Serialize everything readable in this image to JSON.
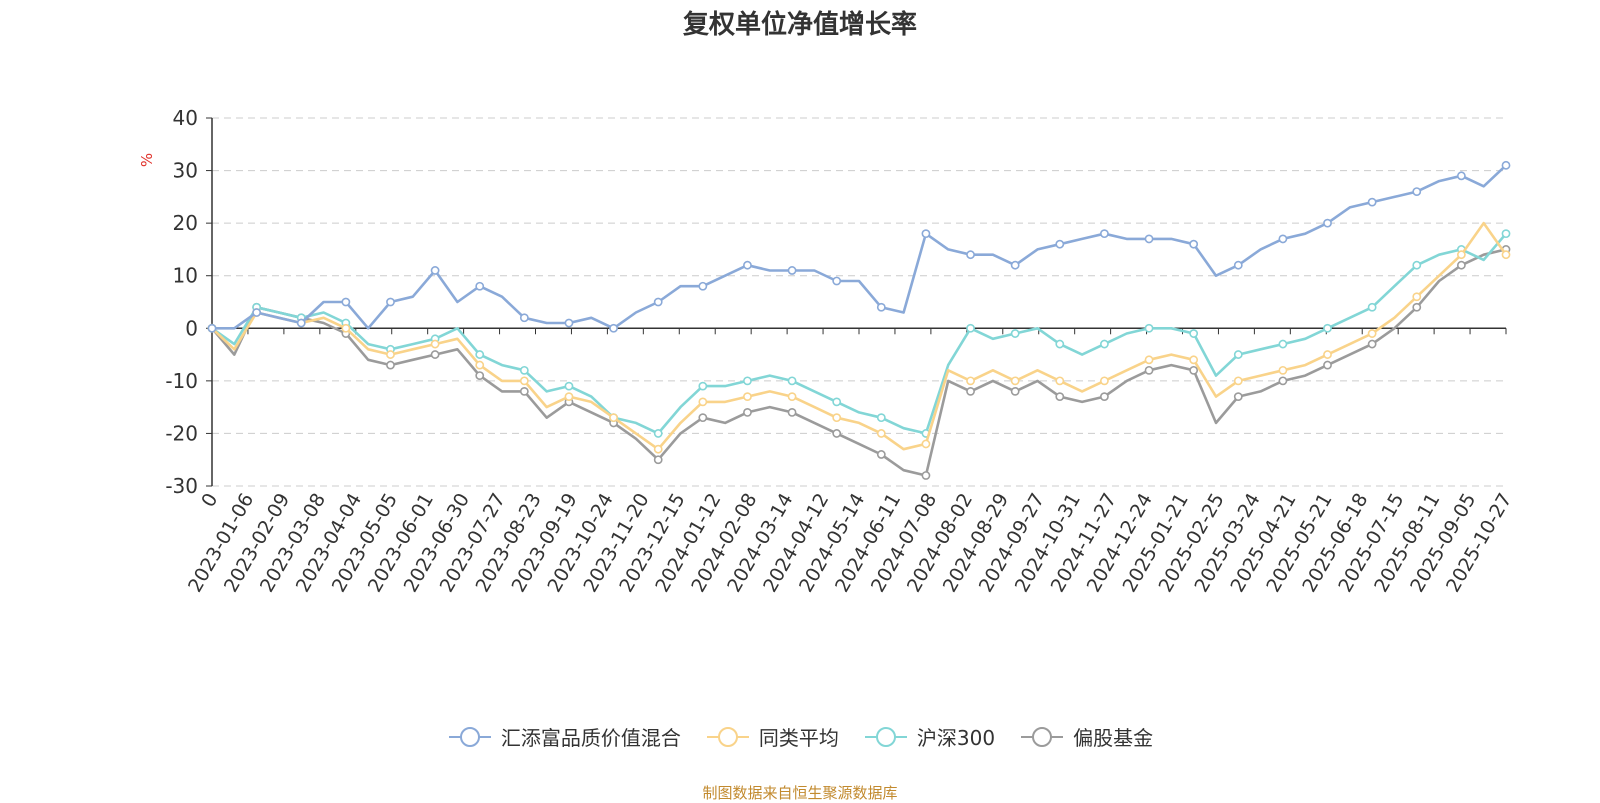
{
  "chart_data": {
    "type": "line",
    "title": "复权单位净值增长率",
    "ylabel": "%",
    "ylim": [
      -30,
      40
    ],
    "yticks": [
      40,
      30,
      20,
      10,
      0,
      -10,
      -20,
      -30
    ],
    "xticks": [
      "0",
      "2023-01-06",
      "2023-02-09",
      "2023-03-08",
      "2023-04-04",
      "2023-05-05",
      "2023-06-01",
      "2023-06-30",
      "2023-07-27",
      "2023-08-23",
      "2023-09-19",
      "2023-10-24",
      "2023-11-20",
      "2023-12-15",
      "2024-01-12",
      "2024-02-08",
      "2024-03-14",
      "2024-04-12",
      "2024-05-14",
      "2024-06-11",
      "2024-07-08",
      "2024-08-02",
      "2024-08-29",
      "2024-09-27",
      "2024-10-31",
      "2024-11-27",
      "2024-12-24",
      "2025-01-21",
      "2025-02-25",
      "2025-03-24",
      "2025-04-21",
      "2025-05-21",
      "2025-06-18",
      "2025-07-15",
      "2025-08-11",
      "2025-09-05",
      "2025-10-27"
    ],
    "grid": true,
    "legend_position": "bottom",
    "series": [
      {
        "name": "汇添富品质价值混合",
        "color": "#8aa9d8",
        "values": [
          0,
          0,
          3,
          2,
          1,
          5,
          5,
          0,
          5,
          6,
          11,
          5,
          8,
          6,
          2,
          1,
          1,
          2,
          0,
          3,
          5,
          8,
          8,
          10,
          12,
          11,
          11,
          11,
          9,
          9,
          4,
          3,
          18,
          15,
          14,
          14,
          12,
          15,
          16,
          17,
          18,
          17,
          17,
          17,
          16,
          10,
          12,
          15,
          17,
          18,
          20,
          23,
          24,
          25,
          26,
          28,
          29,
          27,
          31
        ]
      },
      {
        "name": "同类平均",
        "color": "#f9d38a",
        "values": [
          0,
          -4,
          3,
          2,
          1,
          2,
          0,
          -4,
          -5,
          -4,
          -3,
          -2,
          -7,
          -10,
          -10,
          -15,
          -13,
          -14,
          -17,
          -20,
          -23,
          -18,
          -14,
          -14,
          -13,
          -12,
          -13,
          -15,
          -17,
          -18,
          -20,
          -23,
          -22,
          -8,
          -10,
          -8,
          -10,
          -8,
          -10,
          -12,
          -10,
          -8,
          -6,
          -5,
          -6,
          -13,
          -10,
          -9,
          -8,
          -7,
          -5,
          -3,
          -1,
          2,
          6,
          10,
          14,
          20,
          14
        ]
      },
      {
        "name": "沪深300",
        "color": "#82d6d6",
        "values": [
          0,
          -3,
          4,
          3,
          2,
          3,
          1,
          -3,
          -4,
          -3,
          -2,
          0,
          -5,
          -7,
          -8,
          -12,
          -11,
          -13,
          -17,
          -18,
          -20,
          -15,
          -11,
          -11,
          -10,
          -9,
          -10,
          -12,
          -14,
          -16,
          -17,
          -19,
          -20,
          -7,
          0,
          -2,
          -1,
          0,
          -3,
          -5,
          -3,
          -1,
          0,
          0,
          -1,
          -9,
          -5,
          -4,
          -3,
          -2,
          0,
          2,
          4,
          8,
          12,
          14,
          15,
          13,
          18
        ]
      },
      {
        "name": "偏股基金",
        "color": "#9b9b9b",
        "values": [
          0,
          -5,
          4,
          3,
          2,
          1,
          -1,
          -6,
          -7,
          -6,
          -5,
          -4,
          -9,
          -12,
          -12,
          -17,
          -14,
          -16,
          -18,
          -21,
          -25,
          -20,
          -17,
          -18,
          -16,
          -15,
          -16,
          -18,
          -20,
          -22,
          -24,
          -27,
          -28,
          -10,
          -12,
          -10,
          -12,
          -10,
          -13,
          -14,
          -13,
          -10,
          -8,
          -7,
          -8,
          -18,
          -13,
          -12,
          -10,
          -9,
          -7,
          -5,
          -3,
          0,
          4,
          9,
          12,
          14,
          15
        ]
      }
    ]
  },
  "footer": {
    "source": "制图数据来自恒生聚源数据库"
  }
}
